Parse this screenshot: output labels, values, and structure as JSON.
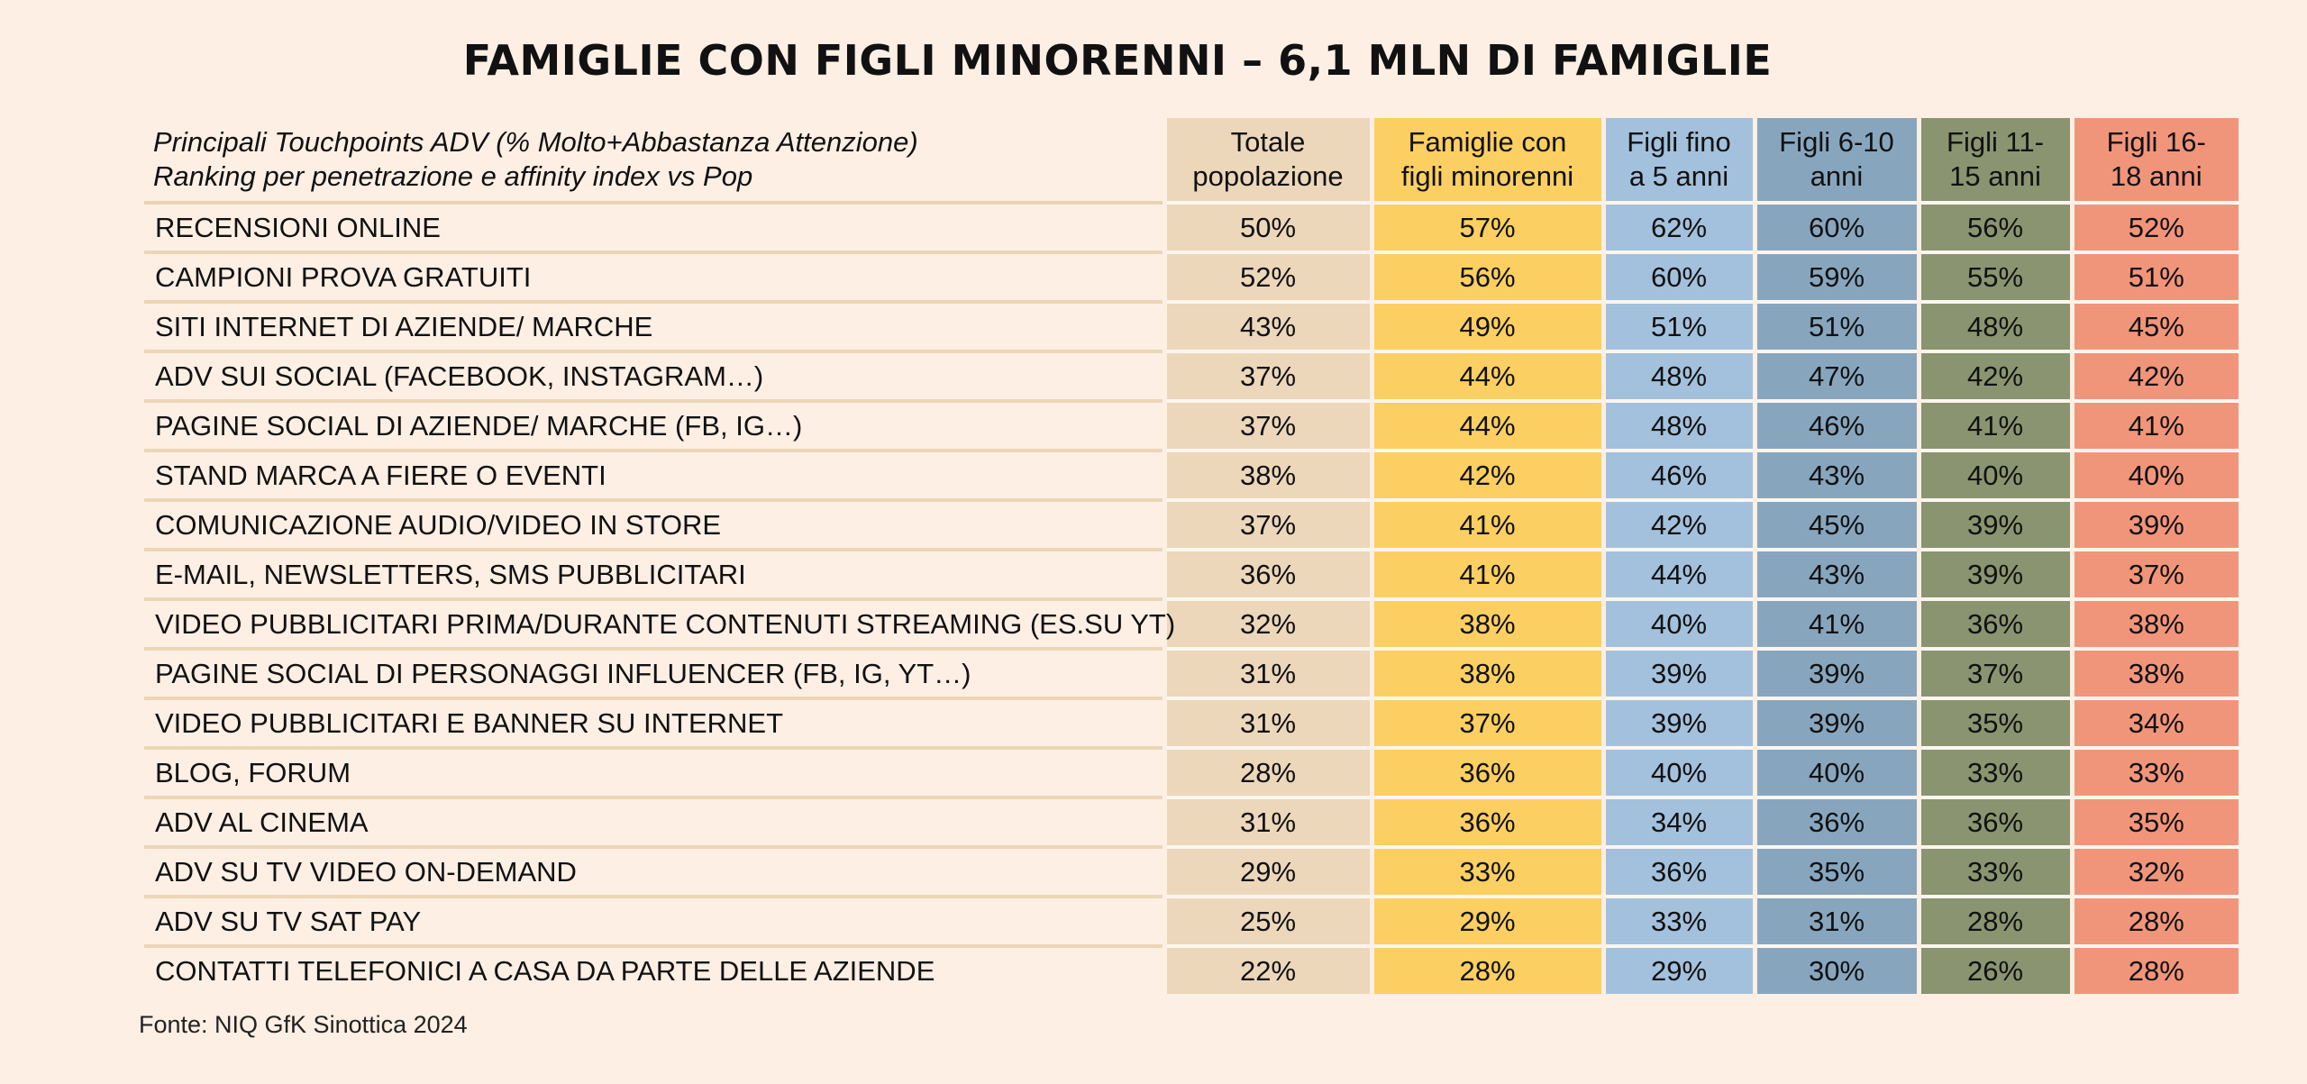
{
  "title": "FAMIGLIE CON FIGLI MINORENNI – 6,1 MLN DI FAMIGLIE",
  "header": {
    "label_line1": "Principali Touchpoints ADV (% Molto+Abbastanza Attenzione)",
    "label_line2": "Ranking per penetrazione e affinity index vs Pop",
    "columns": [
      {
        "line1": "Totale",
        "line2": "popolazione",
        "color": "#ecd7bb"
      },
      {
        "line1": "Famiglie con",
        "line2": "figli minorenni",
        "color": "#fbcf61"
      },
      {
        "line1": "Figli fino",
        "line2": "a 5 anni",
        "color": "#a3c1dc"
      },
      {
        "line1": "Figli 6-10",
        "line2": "anni",
        "color": "#87a6be"
      },
      {
        "line1": "Figli 11-",
        "line2": "15 anni",
        "color": "#8a9470"
      },
      {
        "line1": "Figli 16-",
        "line2": "18 anni",
        "color": "#f1957a"
      }
    ]
  },
  "rows": [
    {
      "label": "RECENSIONI ONLINE",
      "values": [
        "50%",
        "57%",
        "62%",
        "60%",
        "56%",
        "52%"
      ]
    },
    {
      "label": "CAMPIONI PROVA GRATUITI",
      "values": [
        "52%",
        "56%",
        "60%",
        "59%",
        "55%",
        "51%"
      ]
    },
    {
      "label": "SITI INTERNET DI AZIENDE/ MARCHE",
      "values": [
        "43%",
        "49%",
        "51%",
        "51%",
        "48%",
        "45%"
      ]
    },
    {
      "label": "ADV SUI SOCIAL (FACEBOOK, INSTAGRAM…)",
      "values": [
        "37%",
        "44%",
        "48%",
        "47%",
        "42%",
        "42%"
      ]
    },
    {
      "label": "PAGINE SOCIAL DI AZIENDE/ MARCHE (FB, IG…)",
      "values": [
        "37%",
        "44%",
        "48%",
        "46%",
        "41%",
        "41%"
      ]
    },
    {
      "label": "STAND MARCA A FIERE O EVENTI",
      "values": [
        "38%",
        "42%",
        "46%",
        "43%",
        "40%",
        "40%"
      ]
    },
    {
      "label": "COMUNICAZIONE AUDIO/VIDEO IN STORE",
      "values": [
        "37%",
        "41%",
        "42%",
        "45%",
        "39%",
        "39%"
      ]
    },
    {
      "label": "E-MAIL, NEWSLETTERS, SMS PUBBLICITARI",
      "values": [
        "36%",
        "41%",
        "44%",
        "43%",
        "39%",
        "37%"
      ]
    },
    {
      "label": "VIDEO PUBBLICITARI PRIMA/DURANTE CONTENUTI STREAMING (ES.SU YT)",
      "values": [
        "32%",
        "38%",
        "40%",
        "41%",
        "36%",
        "38%"
      ]
    },
    {
      "label": "PAGINE SOCIAL DI PERSONAGGI INFLUENCER (FB, IG, YT…)",
      "values": [
        "31%",
        "38%",
        "39%",
        "39%",
        "37%",
        "38%"
      ]
    },
    {
      "label": "VIDEO PUBBLICITARI E BANNER SU INTERNET",
      "values": [
        "31%",
        "37%",
        "39%",
        "39%",
        "35%",
        "34%"
      ]
    },
    {
      "label": "BLOG, FORUM",
      "values": [
        "28%",
        "36%",
        "40%",
        "40%",
        "33%",
        "33%"
      ]
    },
    {
      "label": "ADV AL CINEMA",
      "values": [
        "31%",
        "36%",
        "34%",
        "36%",
        "36%",
        "35%"
      ]
    },
    {
      "label": "ADV SU TV VIDEO ON-DEMAND",
      "values": [
        "29%",
        "33%",
        "36%",
        "35%",
        "33%",
        "32%"
      ]
    },
    {
      "label": "ADV SU TV SAT PAY",
      "values": [
        "25%",
        "29%",
        "33%",
        "31%",
        "28%",
        "28%"
      ]
    },
    {
      "label": "CONTATTI TELEFONICI A CASA DA PARTE DELLE AZIENDE",
      "values": [
        "22%",
        "28%",
        "29%",
        "30%",
        "26%",
        "28%"
      ]
    }
  ],
  "source": "Fonte: NIQ GfK Sinottica 2024",
  "chart_data": {
    "type": "table",
    "title": "FAMIGLIE CON FIGLI MINORENNI – 6,1 MLN DI FAMIGLIE",
    "columns": [
      "Totale popolazione",
      "Famiglie con figli minorenni",
      "Figli fino a 5 anni",
      "Figli 6-10 anni",
      "Figli 11-15 anni",
      "Figli 16-18 anni"
    ],
    "categories": [
      "RECENSIONI ONLINE",
      "CAMPIONI PROVA GRATUITI",
      "SITI INTERNET DI AZIENDE/ MARCHE",
      "ADV SUI SOCIAL (FACEBOOK, INSTAGRAM…)",
      "PAGINE SOCIAL DI AZIENDE/ MARCHE (FB, IG…)",
      "STAND MARCA A FIERE O EVENTI",
      "COMUNICAZIONE AUDIO/VIDEO IN STORE",
      "E-MAIL, NEWSLETTERS, SMS PUBBLICITARI",
      "VIDEO PUBBLICITARI PRIMA/DURANTE CONTENUTI STREAMING (ES.SU YT)",
      "PAGINE SOCIAL DI PERSONAGGI INFLUENCER (FB, IG, YT…)",
      "VIDEO PUBBLICITARI E BANNER SU INTERNET",
      "BLOG, FORUM",
      "ADV AL CINEMA",
      "ADV SU TV VIDEO ON-DEMAND",
      "ADV SU TV SAT PAY",
      "CONTATTI TELEFONICI A CASA DA PARTE DELLE AZIENDE"
    ],
    "series": [
      {
        "name": "Totale popolazione",
        "values": [
          50,
          52,
          43,
          37,
          37,
          38,
          37,
          36,
          32,
          31,
          31,
          28,
          31,
          29,
          25,
          22
        ]
      },
      {
        "name": "Famiglie con figli minorenni",
        "values": [
          57,
          56,
          49,
          44,
          44,
          42,
          41,
          41,
          38,
          38,
          37,
          36,
          36,
          33,
          29,
          28
        ]
      },
      {
        "name": "Figli fino a 5 anni",
        "values": [
          62,
          60,
          51,
          48,
          48,
          46,
          42,
          44,
          40,
          39,
          39,
          40,
          34,
          36,
          33,
          29
        ]
      },
      {
        "name": "Figli 6-10 anni",
        "values": [
          60,
          59,
          51,
          47,
          46,
          43,
          45,
          43,
          41,
          39,
          39,
          40,
          36,
          35,
          31,
          30
        ]
      },
      {
        "name": "Figli 11-15 anni",
        "values": [
          56,
          55,
          48,
          42,
          41,
          40,
          39,
          39,
          36,
          37,
          35,
          33,
          36,
          33,
          28,
          26
        ]
      },
      {
        "name": "Figli 16-18 anni",
        "values": [
          52,
          51,
          45,
          42,
          41,
          40,
          39,
          37,
          38,
          38,
          34,
          33,
          35,
          32,
          28,
          28
        ]
      }
    ]
  }
}
